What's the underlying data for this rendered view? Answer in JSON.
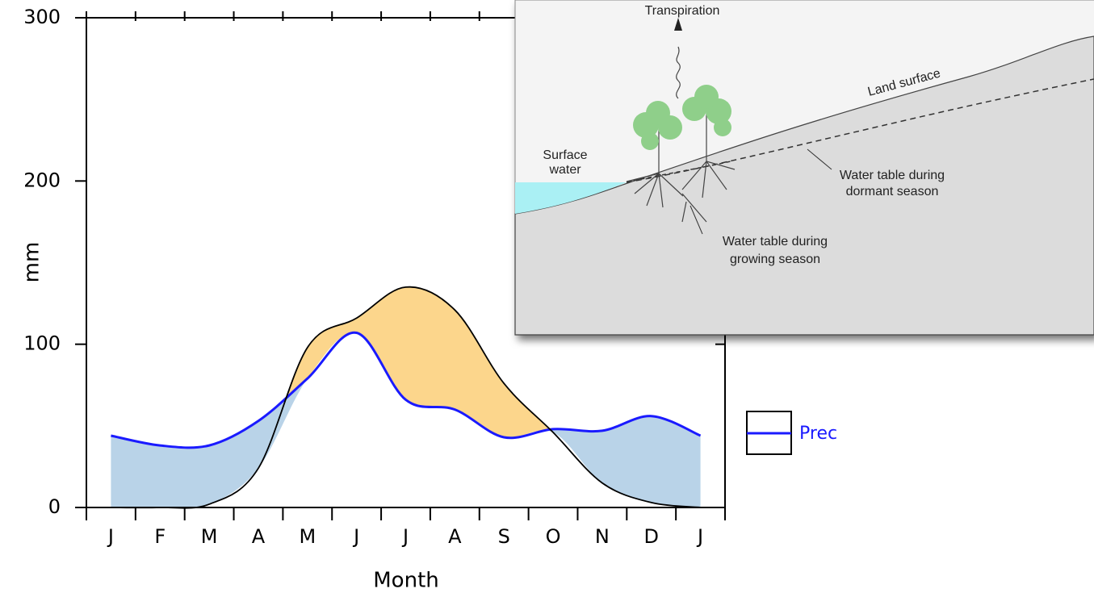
{
  "chart_data": {
    "type": "line",
    "categories": [
      "J",
      "F",
      "M",
      "A",
      "M",
      "J",
      "J",
      "A",
      "S",
      "O",
      "N",
      "D",
      "J"
    ],
    "series": [
      {
        "name": "Prec",
        "color": "#1a1aff",
        "values": [
          44,
          38,
          38,
          53,
          79,
          107,
          66,
          60,
          43,
          48,
          47,
          56,
          44
        ]
      },
      {
        "color": "#000000",
        "values": [
          0,
          0,
          2,
          24,
          98,
          116,
          135,
          121,
          76,
          46,
          15,
          3,
          0
        ]
      }
    ],
    "ylim": [
      0,
      300
    ],
    "yticks": [
      0,
      100,
      200,
      300
    ],
    "ylabel": "mm",
    "xlabel": "Month"
  },
  "diagram": {
    "transpiration": "Transpiration",
    "land_surface": "Land surface",
    "surface_water": [
      "Surface",
      "water"
    ],
    "dormant": [
      "Water table during",
      "dormant season"
    ],
    "growing": [
      "Water table during",
      "growing season"
    ]
  }
}
